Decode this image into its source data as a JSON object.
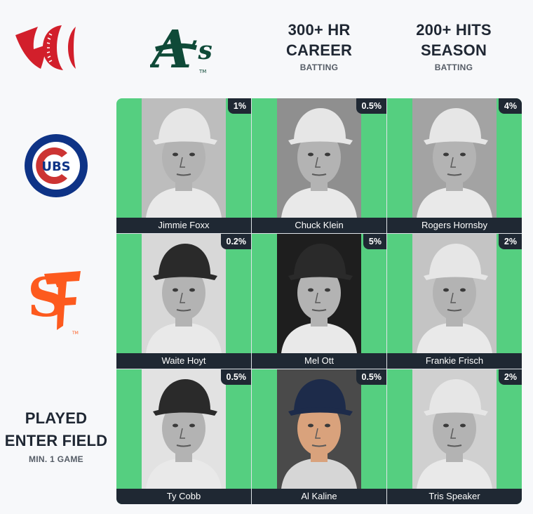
{
  "columns": [
    {
      "type": "team",
      "icon": "oakland-athletics-logo-icon"
    },
    {
      "title": "300+ HR\nCAREER",
      "subtitle": "BATTING"
    },
    {
      "title": "200+ HITS\nSEASON",
      "subtitle": "BATTING"
    }
  ],
  "rows": [
    {
      "type": "team",
      "icon": "chicago-cubs-logo-icon"
    },
    {
      "type": "team",
      "icon": "san-francisco-giants-logo-icon"
    },
    {
      "title": "PLAYED",
      "title2": "ENTER FIELD",
      "subtitle": "MIN. 1 GAME"
    }
  ],
  "cells": [
    {
      "player": "Jimmie Foxx",
      "rarity": "1%"
    },
    {
      "player": "Chuck Klein",
      "rarity": "0.5%"
    },
    {
      "player": "Rogers Hornsby",
      "rarity": "4%"
    },
    {
      "player": "Waite Hoyt",
      "rarity": "0.2%"
    },
    {
      "player": "Mel Ott",
      "rarity": "5%"
    },
    {
      "player": "Frankie Frisch",
      "rarity": "2%"
    },
    {
      "player": "Ty Cobb",
      "rarity": "0.5%"
    },
    {
      "player": "Al Kaline",
      "rarity": "0.5%"
    },
    {
      "player": "Tris Speaker",
      "rarity": "2%"
    }
  ],
  "colors": {
    "correct_cell": "#55cf80",
    "label_bar": "#1f2833",
    "athletics_green": "#0f4a38",
    "cubs_blue": "#0e3386",
    "cubs_red": "#cc3433",
    "giants_orange": "#fd5a1e",
    "site_logo_red": "#d21f2b"
  }
}
